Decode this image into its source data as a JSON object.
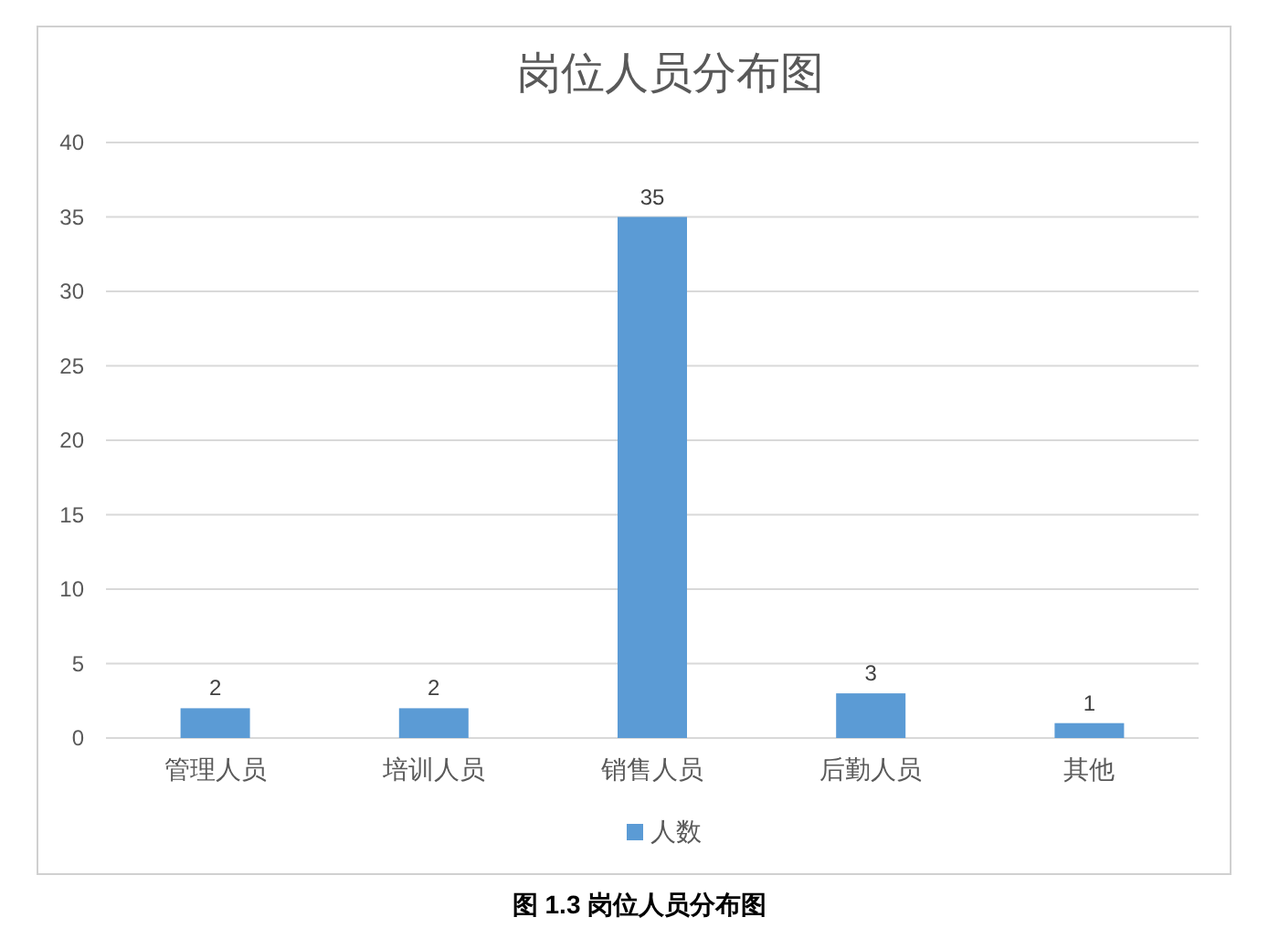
{
  "chart_data": {
    "type": "bar",
    "title": "岗位人员分布图",
    "categories": [
      "管理人员",
      "培训人员",
      "销售人员",
      "后勤人员",
      "其他"
    ],
    "series": [
      {
        "name": "人数",
        "color": "#5b9bd5",
        "values": [
          2,
          2,
          35,
          3,
          1
        ]
      }
    ],
    "ylim": [
      0,
      40
    ],
    "yticks": [
      0,
      5,
      10,
      15,
      20,
      25,
      30,
      35,
      40
    ],
    "grid": "y",
    "legend": "bottom",
    "data_labels": true,
    "annotations": [
      "图 1.3 岗位人员分布图"
    ]
  }
}
